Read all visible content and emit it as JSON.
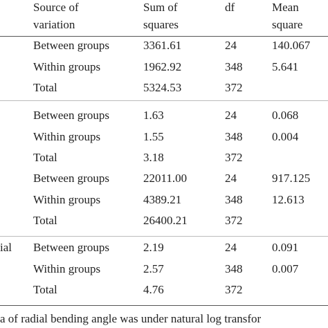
{
  "table": {
    "header": [
      [
        "Source of",
        "variation"
      ],
      [
        "Sum of",
        "squares"
      ],
      [
        "df"
      ],
      [
        "Mean",
        "square"
      ]
    ],
    "groups": [
      {
        "rows": [
          [
            "Between groups",
            "3361.61",
            "24",
            "140.067"
          ],
          [
            "Within groups",
            "1962.92",
            "348",
            "5.641"
          ],
          [
            "Total",
            "5324.53",
            "372"
          ]
        ]
      },
      {
        "rows": [
          [
            "Between groups",
            "1.63",
            "24",
            "0.068"
          ],
          [
            "Within groups",
            "1.55",
            "348",
            "0.004"
          ],
          [
            "Total",
            "3.18",
            "372"
          ]
        ]
      },
      {
        "rows": [
          [
            "Between groups",
            "22011.00",
            "24",
            "917.125"
          ],
          [
            "Within groups",
            "4389.21",
            "348",
            "12.613"
          ],
          [
            "Total",
            "26400.21",
            "372"
          ]
        ]
      },
      {
        "label": "ial",
        "rows": [
          [
            "Between groups",
            "2.19",
            "24",
            "0.091"
          ],
          [
            "Within groups",
            "2.57",
            "348",
            "0.007"
          ],
          [
            "Total",
            "4.76",
            "372"
          ]
        ]
      }
    ]
  },
  "footnote": "a of radial bending angle was under natural log transfor"
}
